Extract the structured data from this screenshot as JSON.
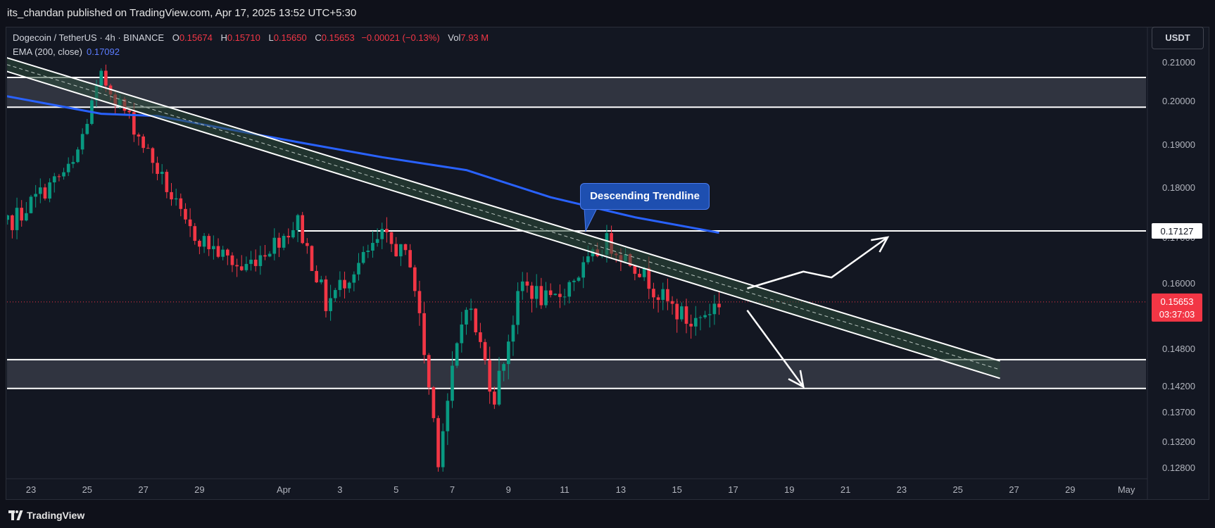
{
  "header": {
    "published_by": "its_chandan published on TradingView.com, Apr 17, 2025 13:52 UTC+5:30"
  },
  "legend": {
    "symbol": "Dogecoin / TetherUS · 4h · BINANCE",
    "o_label": "O",
    "o_value": "0.15674",
    "h_label": "H",
    "h_value": "0.15710",
    "l_label": "L",
    "l_value": "0.15650",
    "c_label": "C",
    "c_value": "0.15653",
    "change": "−0.00021 (−0.13%)",
    "vol_label": "Vol",
    "vol_value": "7.93 M",
    "ema_label": "EMA (200, close)",
    "ema_value": "0.17092"
  },
  "currency": "USDT",
  "annotation": "Descending Trendline",
  "footer": {
    "brand": "TradingView"
  },
  "colors": {
    "up": "#089981",
    "down": "#f23645",
    "ema": "#2962ff",
    "zone_fill": "#363a45",
    "line": "#ffffff",
    "last_price": "#f23645"
  },
  "chart_data": {
    "type": "candlestick",
    "symbol": "DOGEUSDT",
    "interval": "4h",
    "y_ticks": [
      "0.21000",
      "0.20000",
      "0.19000",
      "0.18000",
      "0.17000",
      "0.16000",
      "0.14800",
      "0.14200",
      "0.13700",
      "0.13200",
      "0.12800"
    ],
    "x_ticks": [
      {
        "label": "23",
        "day": 23
      },
      {
        "label": "25",
        "day": 25
      },
      {
        "label": "27",
        "day": 27
      },
      {
        "label": "29",
        "day": 29
      },
      {
        "label": "Apr",
        "day": 32
      },
      {
        "label": "3",
        "day": 34
      },
      {
        "label": "5",
        "day": 36
      },
      {
        "label": "7",
        "day": 38
      },
      {
        "label": "9",
        "day": 40
      },
      {
        "label": "11",
        "day": 42
      },
      {
        "label": "13",
        "day": 44
      },
      {
        "label": "15",
        "day": 46
      },
      {
        "label": "17",
        "day": 48
      },
      {
        "label": "19",
        "day": 50
      },
      {
        "label": "21",
        "day": 52
      },
      {
        "label": "23",
        "day": 54
      },
      {
        "label": "25",
        "day": 56
      },
      {
        "label": "27",
        "day": 58
      },
      {
        "label": "29",
        "day": 60
      },
      {
        "label": "May",
        "day": 62
      }
    ],
    "last_price": "0.15653",
    "countdown": "03:37:03",
    "level_label": "0.17127",
    "key_points": [
      {
        "date": "2025-03-22",
        "price": 0.1688
      },
      {
        "date": "2025-03-25",
        "price": 0.185
      },
      {
        "date": "2025-03-26",
        "price": 0.206
      },
      {
        "date": "2025-03-27",
        "price": 0.196
      },
      {
        "date": "2025-03-29",
        "price": 0.172
      },
      {
        "date": "2025-03-31",
        "price": 0.163
      },
      {
        "date": "2025-04-02",
        "price": 0.173
      },
      {
        "date": "2025-04-03",
        "price": 0.156
      },
      {
        "date": "2025-04-05",
        "price": 0.17
      },
      {
        "date": "2025-04-06",
        "price": 0.165
      },
      {
        "date": "2025-04-07",
        "price": 0.13
      },
      {
        "date": "2025-04-08",
        "price": 0.157
      },
      {
        "date": "2025-04-09",
        "price": 0.14
      },
      {
        "date": "2025-04-10",
        "price": 0.16
      },
      {
        "date": "2025-04-11",
        "price": 0.156
      },
      {
        "date": "2025-04-12",
        "price": 0.162
      },
      {
        "date": "2025-04-13",
        "price": 0.169
      },
      {
        "date": "2025-04-14",
        "price": 0.164
      },
      {
        "date": "2025-04-15",
        "price": 0.157
      },
      {
        "date": "2025-04-16",
        "price": 0.1525
      },
      {
        "date": "2025-04-17",
        "price": 0.1565
      }
    ],
    "ema_200": [
      {
        "date": "2025-03-22",
        "value": 0.202
      },
      {
        "date": "2025-03-26",
        "value": 0.197
      },
      {
        "date": "2025-03-28",
        "value": 0.1965
      },
      {
        "date": "2025-04-02",
        "value": 0.1905
      },
      {
        "date": "2025-04-05",
        "value": 0.187
      },
      {
        "date": "2025-04-08",
        "value": 0.184
      },
      {
        "date": "2025-04-11",
        "value": 0.178
      },
      {
        "date": "2025-04-14",
        "value": 0.174
      },
      {
        "date": "2025-04-17",
        "value": 0.1709
      }
    ],
    "zones": [
      {
        "top": 0.206,
        "bottom": 0.1985
      },
      {
        "top": 0.1462,
        "bottom": 0.1415
      }
    ],
    "horizontal_level": {
      "price": 0.17127,
      "from": "2025-04-02"
    },
    "trend_channel": [
      {
        "from": {
          "date": "2025-03-22",
          "price": 0.2125
        },
        "to": {
          "date": "2025-04-27",
          "price": 0.146
        }
      },
      {
        "from": {
          "date": "2025-03-22",
          "price": 0.209
        },
        "to": {
          "date": "2025-04-27",
          "price": 0.1432
        }
      }
    ],
    "projection_up": [
      {
        "date": "2025-04-18",
        "price": 0.159
      },
      {
        "date": "2025-04-20",
        "price": 0.1625
      },
      {
        "date": "2025-04-21",
        "price": 0.1612
      },
      {
        "date": "2025-04-23",
        "price": 0.17
      }
    ],
    "projection_down": [
      {
        "date": "2025-04-18",
        "price": 0.155
      },
      {
        "date": "2025-04-20",
        "price": 0.1418
      }
    ]
  }
}
